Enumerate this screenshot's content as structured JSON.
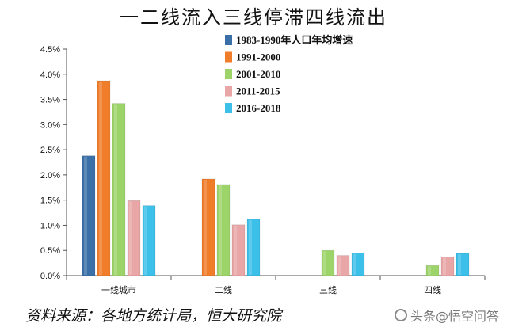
{
  "title": "一二线流入三线停滞四线流出",
  "source": "资料来源：各地方统计局，恒大研究院",
  "watermark": "头条@悟空问答",
  "colors": {
    "1983-1990": "#3a6fa8",
    "1991-2000": "#f07d2a",
    "2001-2010": "#9dd46a",
    "2011-2015": "#e8a6a6",
    "2016-2018": "#3cbfe8"
  },
  "chart_data": {
    "type": "bar",
    "categories": [
      "一线城市",
      "二线",
      "三线",
      "四线"
    ],
    "ylim": [
      0,
      4.5
    ],
    "yticks": [
      "0.0%",
      "0.5%",
      "1.0%",
      "1.5%",
      "2.0%",
      "2.5%",
      "3.0%",
      "3.5%",
      "4.0%",
      "4.5%"
    ],
    "legend_position": "top-center",
    "grid": false,
    "series": [
      {
        "name": "1983-1990年人口年均增速",
        "key": "1983-1990",
        "values": [
          2.38,
          0,
          0,
          0
        ]
      },
      {
        "name": "1991-2000",
        "key": "1991-2000",
        "values": [
          3.87,
          1.92,
          0,
          0
        ]
      },
      {
        "name": "2001-2010",
        "key": "2001-2010",
        "values": [
          3.42,
          1.81,
          0.5,
          0.2
        ]
      },
      {
        "name": "2011-2015",
        "key": "2011-2015",
        "values": [
          1.49,
          1.01,
          0.4,
          0.37
        ]
      },
      {
        "name": "2016-2018",
        "key": "2016-2018",
        "values": [
          1.39,
          1.12,
          0.45,
          0.44
        ]
      }
    ]
  }
}
